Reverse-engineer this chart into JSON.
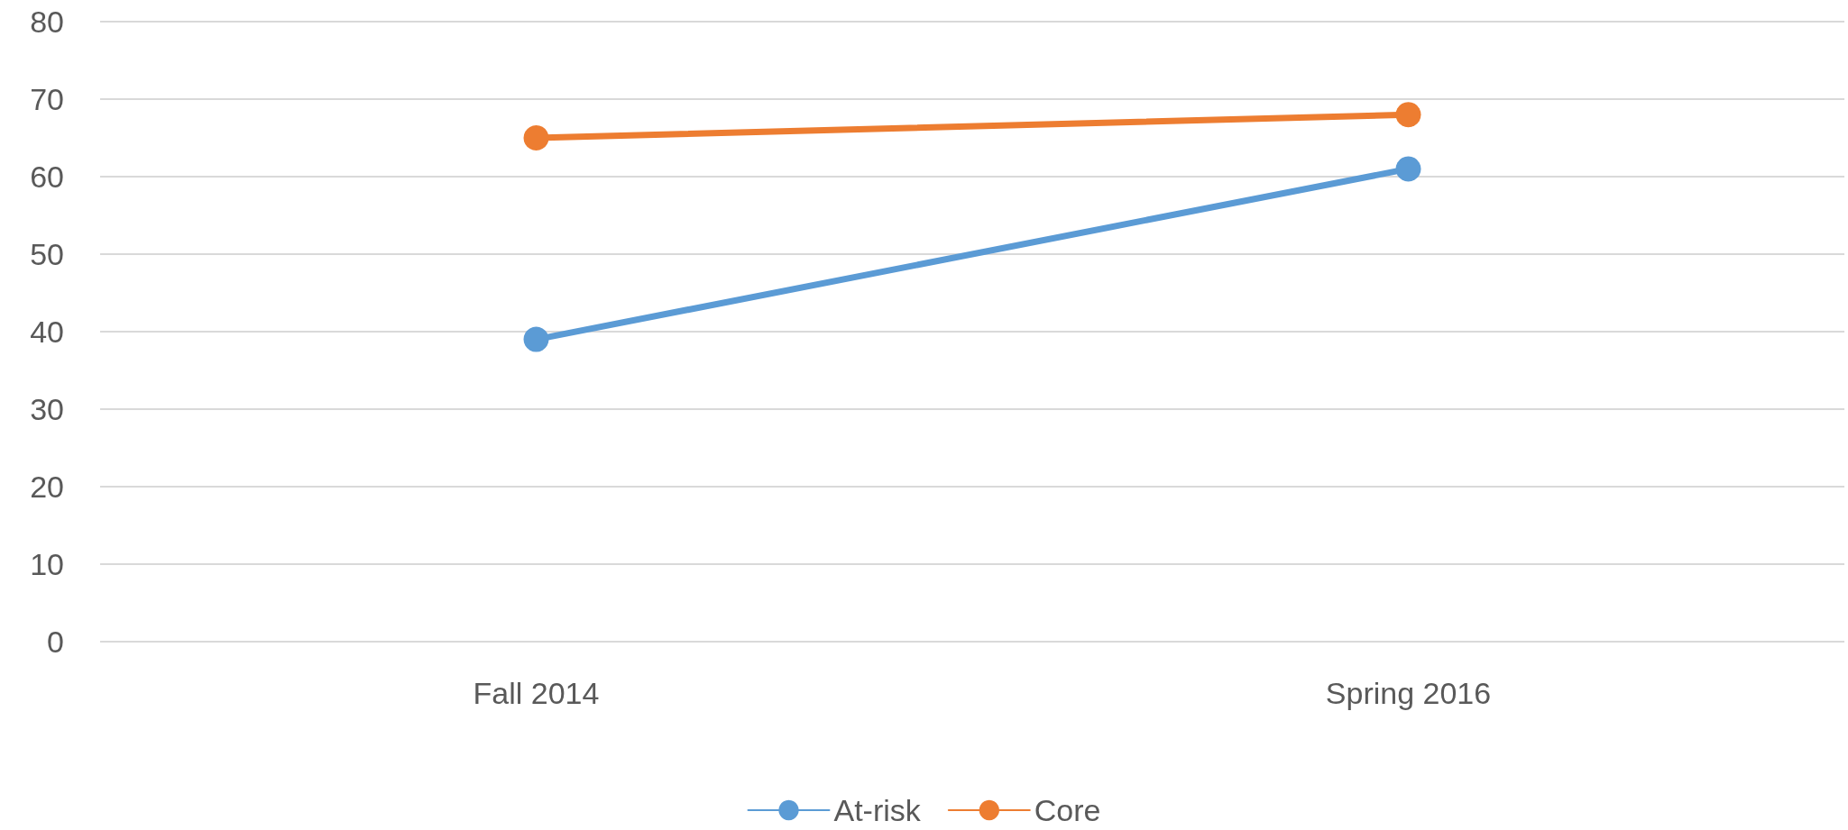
{
  "chart_data": {
    "type": "line",
    "categories": [
      "Fall 2014",
      "Spring 2016"
    ],
    "series": [
      {
        "name": "At-risk",
        "color": "#5b9bd5",
        "values": [
          39,
          61
        ]
      },
      {
        "name": "Core",
        "color": "#ed7d31",
        "values": [
          65,
          68
        ]
      }
    ],
    "ylim": [
      0,
      80
    ],
    "yticks": [
      0,
      10,
      20,
      30,
      40,
      50,
      60,
      70,
      80
    ],
    "grid": "y",
    "legend": "bottom",
    "marker": "circle",
    "line_style": "solid"
  }
}
